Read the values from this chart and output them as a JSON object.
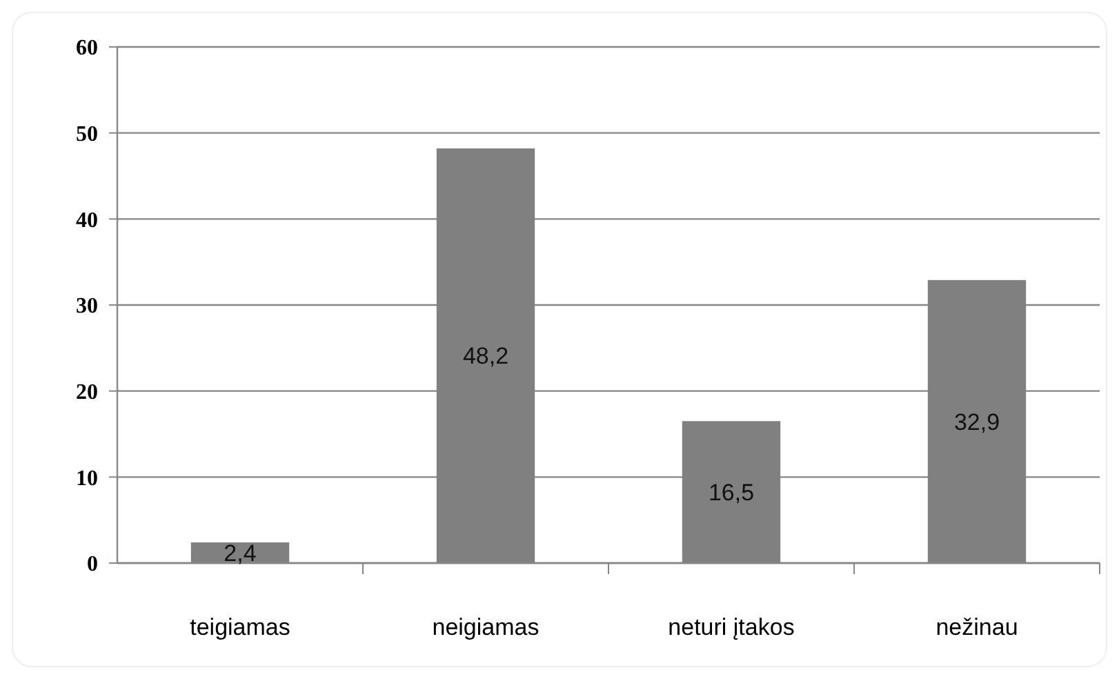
{
  "chart_data": {
    "type": "bar",
    "categories": [
      "teigiamas",
      "neigiamas",
      "neturi įtakos",
      "nežinau"
    ],
    "values": [
      2.4,
      48.2,
      16.5,
      32.9
    ],
    "value_labels": [
      "2,4",
      "48,2",
      "16,5",
      "32,9"
    ],
    "color": "#808080",
    "ylim": [
      0,
      60
    ],
    "yticks": [
      0,
      10,
      20,
      30,
      40,
      50,
      60
    ],
    "grid": "y"
  }
}
